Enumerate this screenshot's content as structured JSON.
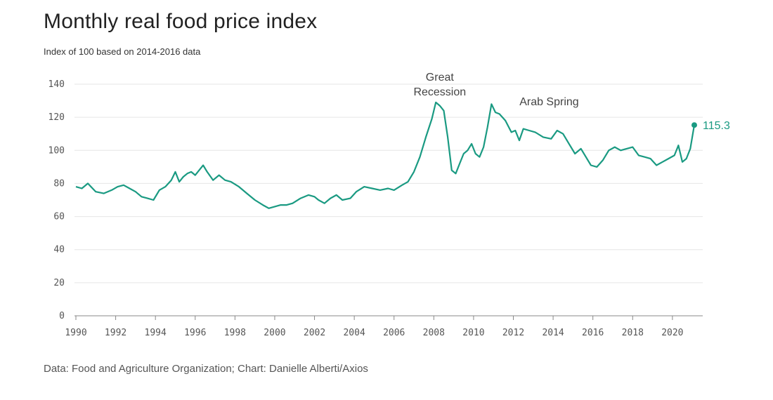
{
  "colors": {
    "line": "#1a9a82",
    "grid": "#e6e6e6",
    "axis": "#888888",
    "text": "#222222"
  },
  "chart_data": {
    "type": "line",
    "title": "Monthly real food price index",
    "subtitle": "Index of 100 based on 2014-2016 data",
    "source": "Data: Food and Agriculture Organization; Chart: Danielle Alberti/Axios",
    "xlabel": "",
    "ylabel": "",
    "xlim": [
      1990,
      2021.1
    ],
    "ylim": [
      0,
      140
    ],
    "yticks": [
      0,
      20,
      40,
      60,
      80,
      100,
      120,
      140
    ],
    "xticks": [
      1990,
      1992,
      1994,
      1996,
      1998,
      2000,
      2002,
      2004,
      2006,
      2008,
      2010,
      2012,
      2014,
      2016,
      2018,
      2020
    ],
    "grid": true,
    "series": [
      {
        "name": "Real food price index",
        "x": [
          1990,
          1990.3,
          1990.6,
          1991,
          1991.4,
          1991.8,
          1992.1,
          1992.4,
          1992.7,
          1993,
          1993.3,
          1993.6,
          1993.9,
          1994.2,
          1994.5,
          1994.8,
          1995,
          1995.2,
          1995.4,
          1995.6,
          1995.8,
          1996,
          1996.2,
          1996.4,
          1996.6,
          1996.9,
          1997.2,
          1997.5,
          1997.8,
          1998.2,
          1998.6,
          1999,
          1999.4,
          1999.7,
          2000,
          2000.3,
          2000.6,
          2000.9,
          2001.3,
          2001.7,
          2002,
          2002.2,
          2002.5,
          2002.8,
          2003.1,
          2003.4,
          2003.8,
          2004.1,
          2004.5,
          2004.9,
          2005.3,
          2005.7,
          2006,
          2006.4,
          2006.7,
          2007,
          2007.3,
          2007.6,
          2007.9,
          2008.1,
          2008.3,
          2008.5,
          2008.7,
          2008.9,
          2009.1,
          2009.3,
          2009.5,
          2009.7,
          2009.9,
          2010.1,
          2010.3,
          2010.5,
          2010.7,
          2010.9,
          2011.1,
          2011.3,
          2011.6,
          2011.9,
          2012.1,
          2012.3,
          2012.5,
          2012.8,
          2013.1,
          2013.5,
          2013.9,
          2014.2,
          2014.5,
          2014.8,
          2015.1,
          2015.4,
          2015.7,
          2015.9,
          2016.2,
          2016.5,
          2016.8,
          2017.1,
          2017.4,
          2017.7,
          2018,
          2018.3,
          2018.6,
          2018.9,
          2019.2,
          2019.5,
          2019.8,
          2020.1,
          2020.3,
          2020.5,
          2020.7,
          2020.9,
          2021.1
        ],
        "values": [
          78,
          77,
          80,
          75,
          74,
          76,
          78,
          79,
          77,
          75,
          72,
          71,
          70,
          76,
          78,
          82,
          87,
          81,
          84,
          86,
          87,
          85,
          88,
          91,
          87,
          82,
          85,
          82,
          81,
          78,
          74,
          70,
          67,
          65,
          66,
          67,
          67,
          68,
          71,
          73,
          72,
          70,
          68,
          71,
          73,
          70,
          71,
          75,
          78,
          77,
          76,
          77,
          76,
          79,
          81,
          87,
          96,
          108,
          119,
          129,
          127,
          124,
          108,
          88,
          86,
          92,
          98,
          100,
          104,
          98,
          96,
          102,
          114,
          128,
          123,
          122,
          118,
          111,
          112,
          106,
          113,
          112,
          111,
          108,
          107,
          112,
          110,
          104,
          98,
          101,
          95,
          91,
          90,
          94,
          100,
          102,
          100,
          101,
          102,
          97,
          96,
          95,
          91,
          93,
          95,
          97,
          103,
          93,
          95,
          101,
          115.3
        ]
      }
    ],
    "annotations": [
      {
        "lines": [
          "Great",
          "Recession"
        ],
        "x": 2008.3,
        "y": 129
      },
      {
        "lines": [
          "Arab Spring"
        ],
        "x": 2013.8,
        "y": 123
      }
    ],
    "end_label": "115.3"
  }
}
